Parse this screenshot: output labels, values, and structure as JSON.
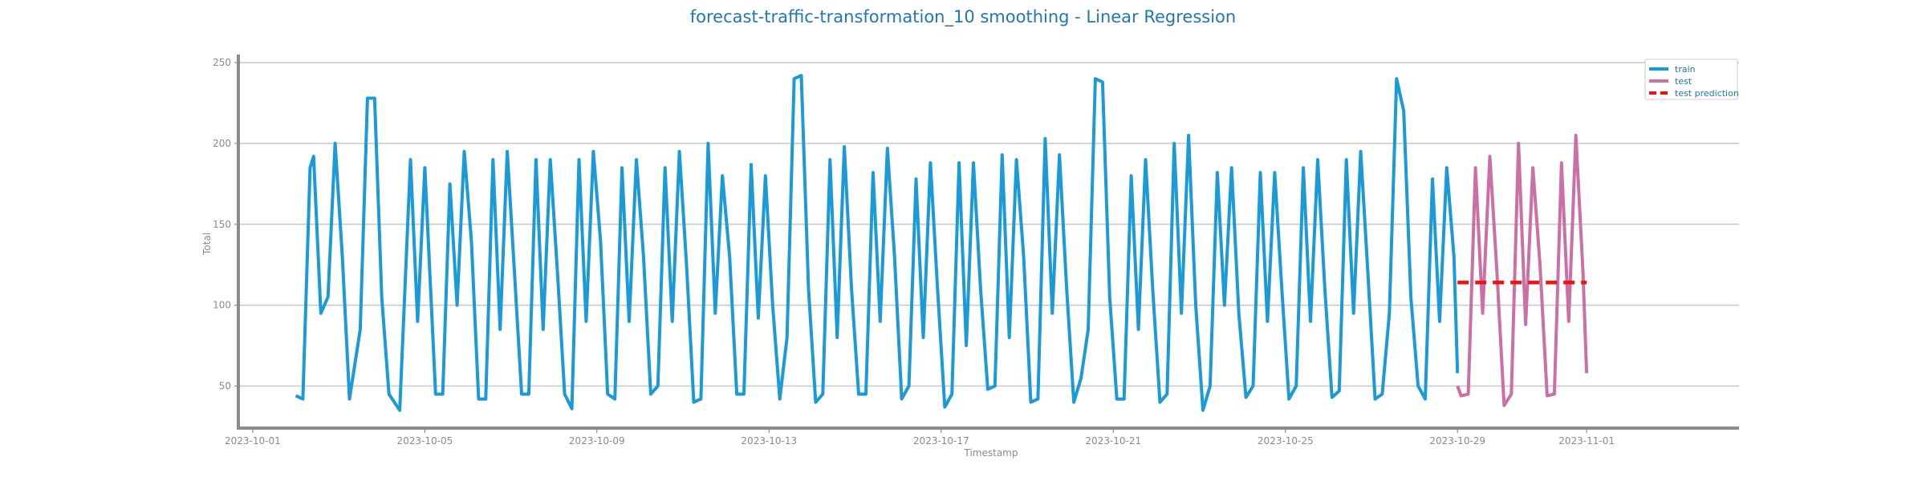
{
  "chart_data": {
    "type": "line",
    "title": "forecast-traffic-transformation_10 smoothing - Linear Regression",
    "xlabel": "Timestamp",
    "ylabel": "Total",
    "x_range": [
      "2023-09-30T16:00",
      "2023-11-04T13:00"
    ],
    "ylim": [
      24,
      254
    ],
    "x_ticks": [
      "2023-10-01",
      "2023-10-05",
      "2023-10-09",
      "2023-10-13",
      "2023-10-17",
      "2023-10-21",
      "2023-10-25",
      "2023-10-29",
      "2023-11-01"
    ],
    "y_ticks": [
      50,
      100,
      150,
      200,
      250
    ],
    "grid": "horizontal",
    "legend_position": "top-right",
    "series": [
      {
        "name": "train",
        "color": "#1a9bd7",
        "style": "solid",
        "points": [
          [
            "2023-10-02T00:00",
            44
          ],
          [
            "2023-10-02T04:00",
            42
          ],
          [
            "2023-10-02T08:00",
            185
          ],
          [
            "2023-10-02T10:00",
            192
          ],
          [
            "2023-10-02T14:00",
            95
          ],
          [
            "2023-10-02T18:00",
            105
          ],
          [
            "2023-10-02T22:00",
            200
          ],
          [
            "2023-10-03T02:00",
            130
          ],
          [
            "2023-10-03T06:00",
            42
          ],
          [
            "2023-10-03T12:00",
            85
          ],
          [
            "2023-10-03T16:00",
            228
          ],
          [
            "2023-10-03T20:00",
            228
          ],
          [
            "2023-10-04T00:00",
            105
          ],
          [
            "2023-10-04T04:00",
            45
          ],
          [
            "2023-10-04T10:00",
            35
          ],
          [
            "2023-10-04T16:00",
            190
          ],
          [
            "2023-10-04T20:00",
            90
          ],
          [
            "2023-10-05T00:00",
            185
          ],
          [
            "2023-10-05T06:00",
            45
          ],
          [
            "2023-10-05T10:00",
            45
          ],
          [
            "2023-10-05T14:00",
            175
          ],
          [
            "2023-10-05T18:00",
            100
          ],
          [
            "2023-10-05T22:00",
            195
          ],
          [
            "2023-10-06T02:00",
            140
          ],
          [
            "2023-10-06T06:00",
            42
          ],
          [
            "2023-10-06T10:00",
            42
          ],
          [
            "2023-10-06T14:00",
            190
          ],
          [
            "2023-10-06T18:00",
            85
          ],
          [
            "2023-10-06T22:00",
            195
          ],
          [
            "2023-10-07T02:00",
            120
          ],
          [
            "2023-10-07T06:00",
            45
          ],
          [
            "2023-10-07T10:00",
            45
          ],
          [
            "2023-10-07T14:00",
            190
          ],
          [
            "2023-10-07T18:00",
            85
          ],
          [
            "2023-10-07T22:00",
            190
          ],
          [
            "2023-10-08T02:00",
            120
          ],
          [
            "2023-10-08T06:00",
            45
          ],
          [
            "2023-10-08T10:00",
            36
          ],
          [
            "2023-10-08T14:00",
            190
          ],
          [
            "2023-10-08T18:00",
            90
          ],
          [
            "2023-10-08T22:00",
            195
          ],
          [
            "2023-10-09T02:00",
            140
          ],
          [
            "2023-10-09T06:00",
            45
          ],
          [
            "2023-10-09T10:00",
            42
          ],
          [
            "2023-10-09T14:00",
            185
          ],
          [
            "2023-10-09T18:00",
            90
          ],
          [
            "2023-10-09T22:00",
            190
          ],
          [
            "2023-10-10T02:00",
            130
          ],
          [
            "2023-10-10T06:00",
            45
          ],
          [
            "2023-10-10T10:00",
            50
          ],
          [
            "2023-10-10T14:00",
            185
          ],
          [
            "2023-10-10T18:00",
            90
          ],
          [
            "2023-10-10T22:00",
            195
          ],
          [
            "2023-10-11T02:00",
            125
          ],
          [
            "2023-10-11T06:00",
            40
          ],
          [
            "2023-10-11T10:00",
            42
          ],
          [
            "2023-10-11T14:00",
            200
          ],
          [
            "2023-10-11T18:00",
            95
          ],
          [
            "2023-10-11T22:00",
            180
          ],
          [
            "2023-10-12T02:00",
            130
          ],
          [
            "2023-10-12T06:00",
            45
          ],
          [
            "2023-10-12T10:00",
            45
          ],
          [
            "2023-10-12T14:00",
            187
          ],
          [
            "2023-10-12T18:00",
            92
          ],
          [
            "2023-10-12T22:00",
            180
          ],
          [
            "2023-10-13T02:00",
            100
          ],
          [
            "2023-10-13T06:00",
            42
          ],
          [
            "2023-10-13T10:00",
            80
          ],
          [
            "2023-10-13T14:00",
            240
          ],
          [
            "2023-10-13T18:00",
            242
          ],
          [
            "2023-10-13T22:00",
            110
          ],
          [
            "2023-10-14T02:00",
            40
          ],
          [
            "2023-10-14T06:00",
            45
          ],
          [
            "2023-10-14T10:00",
            190
          ],
          [
            "2023-10-14T14:00",
            80
          ],
          [
            "2023-10-14T18:00",
            198
          ],
          [
            "2023-10-14T22:00",
            110
          ],
          [
            "2023-10-15T02:00",
            45
          ],
          [
            "2023-10-15T06:00",
            45
          ],
          [
            "2023-10-15T10:00",
            182
          ],
          [
            "2023-10-15T14:00",
            90
          ],
          [
            "2023-10-15T18:00",
            197
          ],
          [
            "2023-10-15T22:00",
            130
          ],
          [
            "2023-10-16T02:00",
            42
          ],
          [
            "2023-10-16T06:00",
            50
          ],
          [
            "2023-10-16T10:00",
            178
          ],
          [
            "2023-10-16T14:00",
            80
          ],
          [
            "2023-10-16T18:00",
            188
          ],
          [
            "2023-10-16T22:00",
            110
          ],
          [
            "2023-10-17T02:00",
            37
          ],
          [
            "2023-10-17T06:00",
            45
          ],
          [
            "2023-10-17T10:00",
            188
          ],
          [
            "2023-10-17T14:00",
            75
          ],
          [
            "2023-10-17T18:00",
            188
          ],
          [
            "2023-10-17T22:00",
            110
          ],
          [
            "2023-10-18T02:00",
            48
          ],
          [
            "2023-10-18T06:00",
            50
          ],
          [
            "2023-10-18T10:00",
            193
          ],
          [
            "2023-10-18T14:00",
            80
          ],
          [
            "2023-10-18T18:00",
            190
          ],
          [
            "2023-10-18T22:00",
            130
          ],
          [
            "2023-10-19T02:00",
            40
          ],
          [
            "2023-10-19T06:00",
            42
          ],
          [
            "2023-10-19T10:00",
            203
          ],
          [
            "2023-10-19T14:00",
            95
          ],
          [
            "2023-10-19T18:00",
            193
          ],
          [
            "2023-10-19T22:00",
            110
          ],
          [
            "2023-10-20T02:00",
            40
          ],
          [
            "2023-10-20T06:00",
            55
          ],
          [
            "2023-10-20T10:00",
            85
          ],
          [
            "2023-10-20T14:00",
            240
          ],
          [
            "2023-10-20T18:00",
            238
          ],
          [
            "2023-10-20T22:00",
            105
          ],
          [
            "2023-10-21T02:00",
            42
          ],
          [
            "2023-10-21T06:00",
            42
          ],
          [
            "2023-10-21T10:00",
            180
          ],
          [
            "2023-10-21T14:00",
            85
          ],
          [
            "2023-10-21T18:00",
            190
          ],
          [
            "2023-10-21T22:00",
            110
          ],
          [
            "2023-10-22T02:00",
            40
          ],
          [
            "2023-10-22T06:00",
            45
          ],
          [
            "2023-10-22T10:00",
            200
          ],
          [
            "2023-10-22T14:00",
            95
          ],
          [
            "2023-10-22T18:00",
            205
          ],
          [
            "2023-10-22T22:00",
            100
          ],
          [
            "2023-10-23T02:00",
            35
          ],
          [
            "2023-10-23T06:00",
            50
          ],
          [
            "2023-10-23T10:00",
            182
          ],
          [
            "2023-10-23T14:00",
            100
          ],
          [
            "2023-10-23T18:00",
            185
          ],
          [
            "2023-10-23T22:00",
            95
          ],
          [
            "2023-10-24T02:00",
            43
          ],
          [
            "2023-10-24T06:00",
            50
          ],
          [
            "2023-10-24T10:00",
            182
          ],
          [
            "2023-10-24T14:00",
            90
          ],
          [
            "2023-10-24T18:00",
            182
          ],
          [
            "2023-10-24T22:00",
            110
          ],
          [
            "2023-10-25T02:00",
            42
          ],
          [
            "2023-10-25T06:00",
            50
          ],
          [
            "2023-10-25T10:00",
            185
          ],
          [
            "2023-10-25T14:00",
            90
          ],
          [
            "2023-10-25T18:00",
            190
          ],
          [
            "2023-10-25T22:00",
            110
          ],
          [
            "2023-10-26T02:00",
            43
          ],
          [
            "2023-10-26T06:00",
            47
          ],
          [
            "2023-10-26T10:00",
            190
          ],
          [
            "2023-10-26T14:00",
            95
          ],
          [
            "2023-10-26T18:00",
            195
          ],
          [
            "2023-10-26T22:00",
            120
          ],
          [
            "2023-10-27T02:00",
            42
          ],
          [
            "2023-10-27T06:00",
            45
          ],
          [
            "2023-10-27T10:00",
            95
          ],
          [
            "2023-10-27T14:00",
            240
          ],
          [
            "2023-10-27T18:00",
            220
          ],
          [
            "2023-10-27T22:00",
            105
          ],
          [
            "2023-10-28T02:00",
            50
          ],
          [
            "2023-10-28T06:00",
            42
          ],
          [
            "2023-10-28T10:00",
            178
          ],
          [
            "2023-10-28T14:00",
            90
          ],
          [
            "2023-10-28T18:00",
            185
          ],
          [
            "2023-10-28T22:00",
            130
          ],
          [
            "2023-10-29T00:00",
            58
          ]
        ]
      },
      {
        "name": "test",
        "color": "#cc6fa6",
        "style": "solid",
        "points": [
          [
            "2023-10-29T00:00",
            50
          ],
          [
            "2023-10-29T02:00",
            44
          ],
          [
            "2023-10-29T06:00",
            45
          ],
          [
            "2023-10-29T10:00",
            185
          ],
          [
            "2023-10-29T14:00",
            95
          ],
          [
            "2023-10-29T18:00",
            192
          ],
          [
            "2023-10-29T22:00",
            120
          ],
          [
            "2023-10-30T02:00",
            38
          ],
          [
            "2023-10-30T06:00",
            45
          ],
          [
            "2023-10-30T10:00",
            200
          ],
          [
            "2023-10-30T14:00",
            88
          ],
          [
            "2023-10-30T18:00",
            185
          ],
          [
            "2023-10-30T22:00",
            125
          ],
          [
            "2023-10-31T02:00",
            44
          ],
          [
            "2023-10-31T06:00",
            45
          ],
          [
            "2023-10-31T10:00",
            188
          ],
          [
            "2023-10-31T14:00",
            90
          ],
          [
            "2023-10-31T18:00",
            205
          ],
          [
            "2023-10-31T22:00",
            120
          ],
          [
            "2023-11-01T00:00",
            58
          ]
        ]
      },
      {
        "name": "test prediction",
        "color": "#ee1111",
        "style": "dashed",
        "points": [
          [
            "2023-10-29T00:00",
            114
          ],
          [
            "2023-11-01T00:00",
            114
          ]
        ]
      }
    ]
  }
}
